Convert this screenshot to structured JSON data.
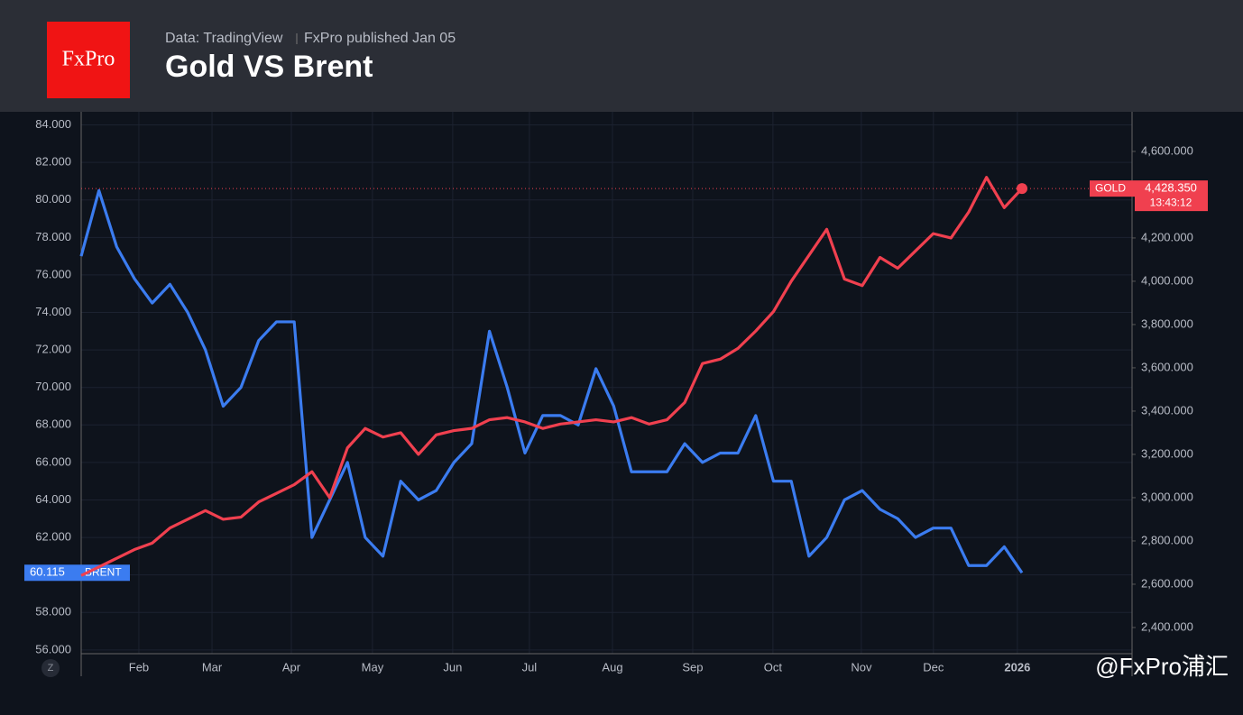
{
  "header": {
    "logo": "FxPro",
    "source": "Data: TradingView",
    "published": "FxPro published Jan 05",
    "watermark": "@FxPro浦汇",
    "zoom_button": "Z"
  },
  "chart_data": {
    "type": "line",
    "title": "Gold VS Brent",
    "x": [
      0,
      1,
      2,
      3,
      4,
      5,
      6,
      7,
      8,
      9,
      10,
      11,
      12,
      13,
      14,
      15,
      16,
      17,
      18,
      19,
      20,
      21,
      22,
      23,
      24,
      25,
      26,
      27,
      28,
      29,
      30,
      31,
      32,
      33,
      34,
      35,
      36,
      37,
      38,
      39,
      40,
      41,
      42,
      43,
      44,
      45,
      46,
      47,
      48,
      49,
      50,
      51,
      52,
      53
    ],
    "xlim": [
      0,
      59.2
    ],
    "xticks": [
      {
        "value": 3.25,
        "label": "Feb"
      },
      {
        "value": 7.37,
        "label": "Mar"
      },
      {
        "value": 11.84,
        "label": "Apr"
      },
      {
        "value": 16.41,
        "label": "May"
      },
      {
        "value": 20.93,
        "label": "Jun"
      },
      {
        "value": 25.25,
        "label": "Jul"
      },
      {
        "value": 29.93,
        "label": "Aug"
      },
      {
        "value": 34.45,
        "label": "Sep"
      },
      {
        "value": 38.97,
        "label": "Oct"
      },
      {
        "value": 43.95,
        "label": "Nov"
      },
      {
        "value": 48.01,
        "label": "Dec"
      },
      {
        "value": 52.74,
        "label": "2026"
      }
    ],
    "ylim": [
      55.8,
      84.7
    ],
    "yticks": [
      {
        "value": 56,
        "label": "56.000"
      },
      {
        "value": 58,
        "label": "58.000"
      },
      {
        "value": 60,
        "label": "60.000"
      },
      {
        "value": 62,
        "label": "62.000"
      },
      {
        "value": 64,
        "label": "64.000"
      },
      {
        "value": 66,
        "label": "66.000"
      },
      {
        "value": 68,
        "label": "68.000"
      },
      {
        "value": 70,
        "label": "70.000"
      },
      {
        "value": 72,
        "label": "72.000"
      },
      {
        "value": 74,
        "label": "74.000"
      },
      {
        "value": 76,
        "label": "76.000"
      },
      {
        "value": 78,
        "label": "78.000"
      },
      {
        "value": 80,
        "label": "80.000"
      },
      {
        "value": 82,
        "label": "82.000"
      },
      {
        "value": 84,
        "label": "84.000"
      }
    ],
    "y2lim": [
      2279,
      4783
    ],
    "y2ticks": [
      {
        "value": 2400,
        "label": "2,400.000"
      },
      {
        "value": 2600,
        "label": "2,600.000"
      },
      {
        "value": 2800,
        "label": "2,800.000"
      },
      {
        "value": 3000,
        "label": "3,000.000"
      },
      {
        "value": 3200,
        "label": "3,200.000"
      },
      {
        "value": 3400,
        "label": "3,400.000"
      },
      {
        "value": 3600,
        "label": "3,600.000"
      },
      {
        "value": 3800,
        "label": "3,800.000"
      },
      {
        "value": 4000,
        "label": "4,000.000"
      },
      {
        "value": 4200,
        "label": "4,200.000"
      },
      {
        "value": 4400,
        "label": "4,400.000"
      },
      {
        "value": 4600,
        "label": "4,600.000"
      }
    ],
    "grid": true,
    "time_label": "13:43:12",
    "series": [
      {
        "name": "BRENT",
        "color": "#3b7cf0",
        "last_label": "60.115",
        "values": [
          77,
          80.5,
          77.5,
          75.8,
          74.5,
          75.5,
          74,
          72,
          69,
          70,
          72.5,
          73.5,
          73.5,
          62,
          64,
          66,
          62,
          61,
          65,
          64,
          64.5,
          66,
          67,
          73,
          70,
          66.5,
          68.5,
          68.5,
          68,
          71,
          69,
          65.5,
          65.5,
          65.5,
          67,
          66,
          66.5,
          66.5,
          68.5,
          65,
          65,
          61,
          62,
          64,
          64.5,
          63.5,
          63,
          62,
          62.5,
          62.5,
          60.5,
          60.5,
          61.5,
          60.115
        ]
      },
      {
        "name": "GOLD",
        "color": "#f0404f",
        "axis": "y2",
        "last_label": "4,428.350",
        "values": [
          2640,
          2680,
          2720,
          2760,
          2790,
          2860,
          2900,
          2940,
          2900,
          2910,
          2980,
          3020,
          3060,
          3120,
          3000,
          3230,
          3320,
          3280,
          3300,
          3200,
          3290,
          3310,
          3320,
          3360,
          3370,
          3350,
          3320,
          3340,
          3350,
          3360,
          3350,
          3370,
          3340,
          3360,
          3440,
          3620,
          3640,
          3690,
          3770,
          3860,
          4000,
          4120,
          4240,
          4010,
          3980,
          4110,
          4060,
          4140,
          4220,
          4200,
          4320,
          4480,
          4340,
          4428.35
        ]
      }
    ]
  }
}
